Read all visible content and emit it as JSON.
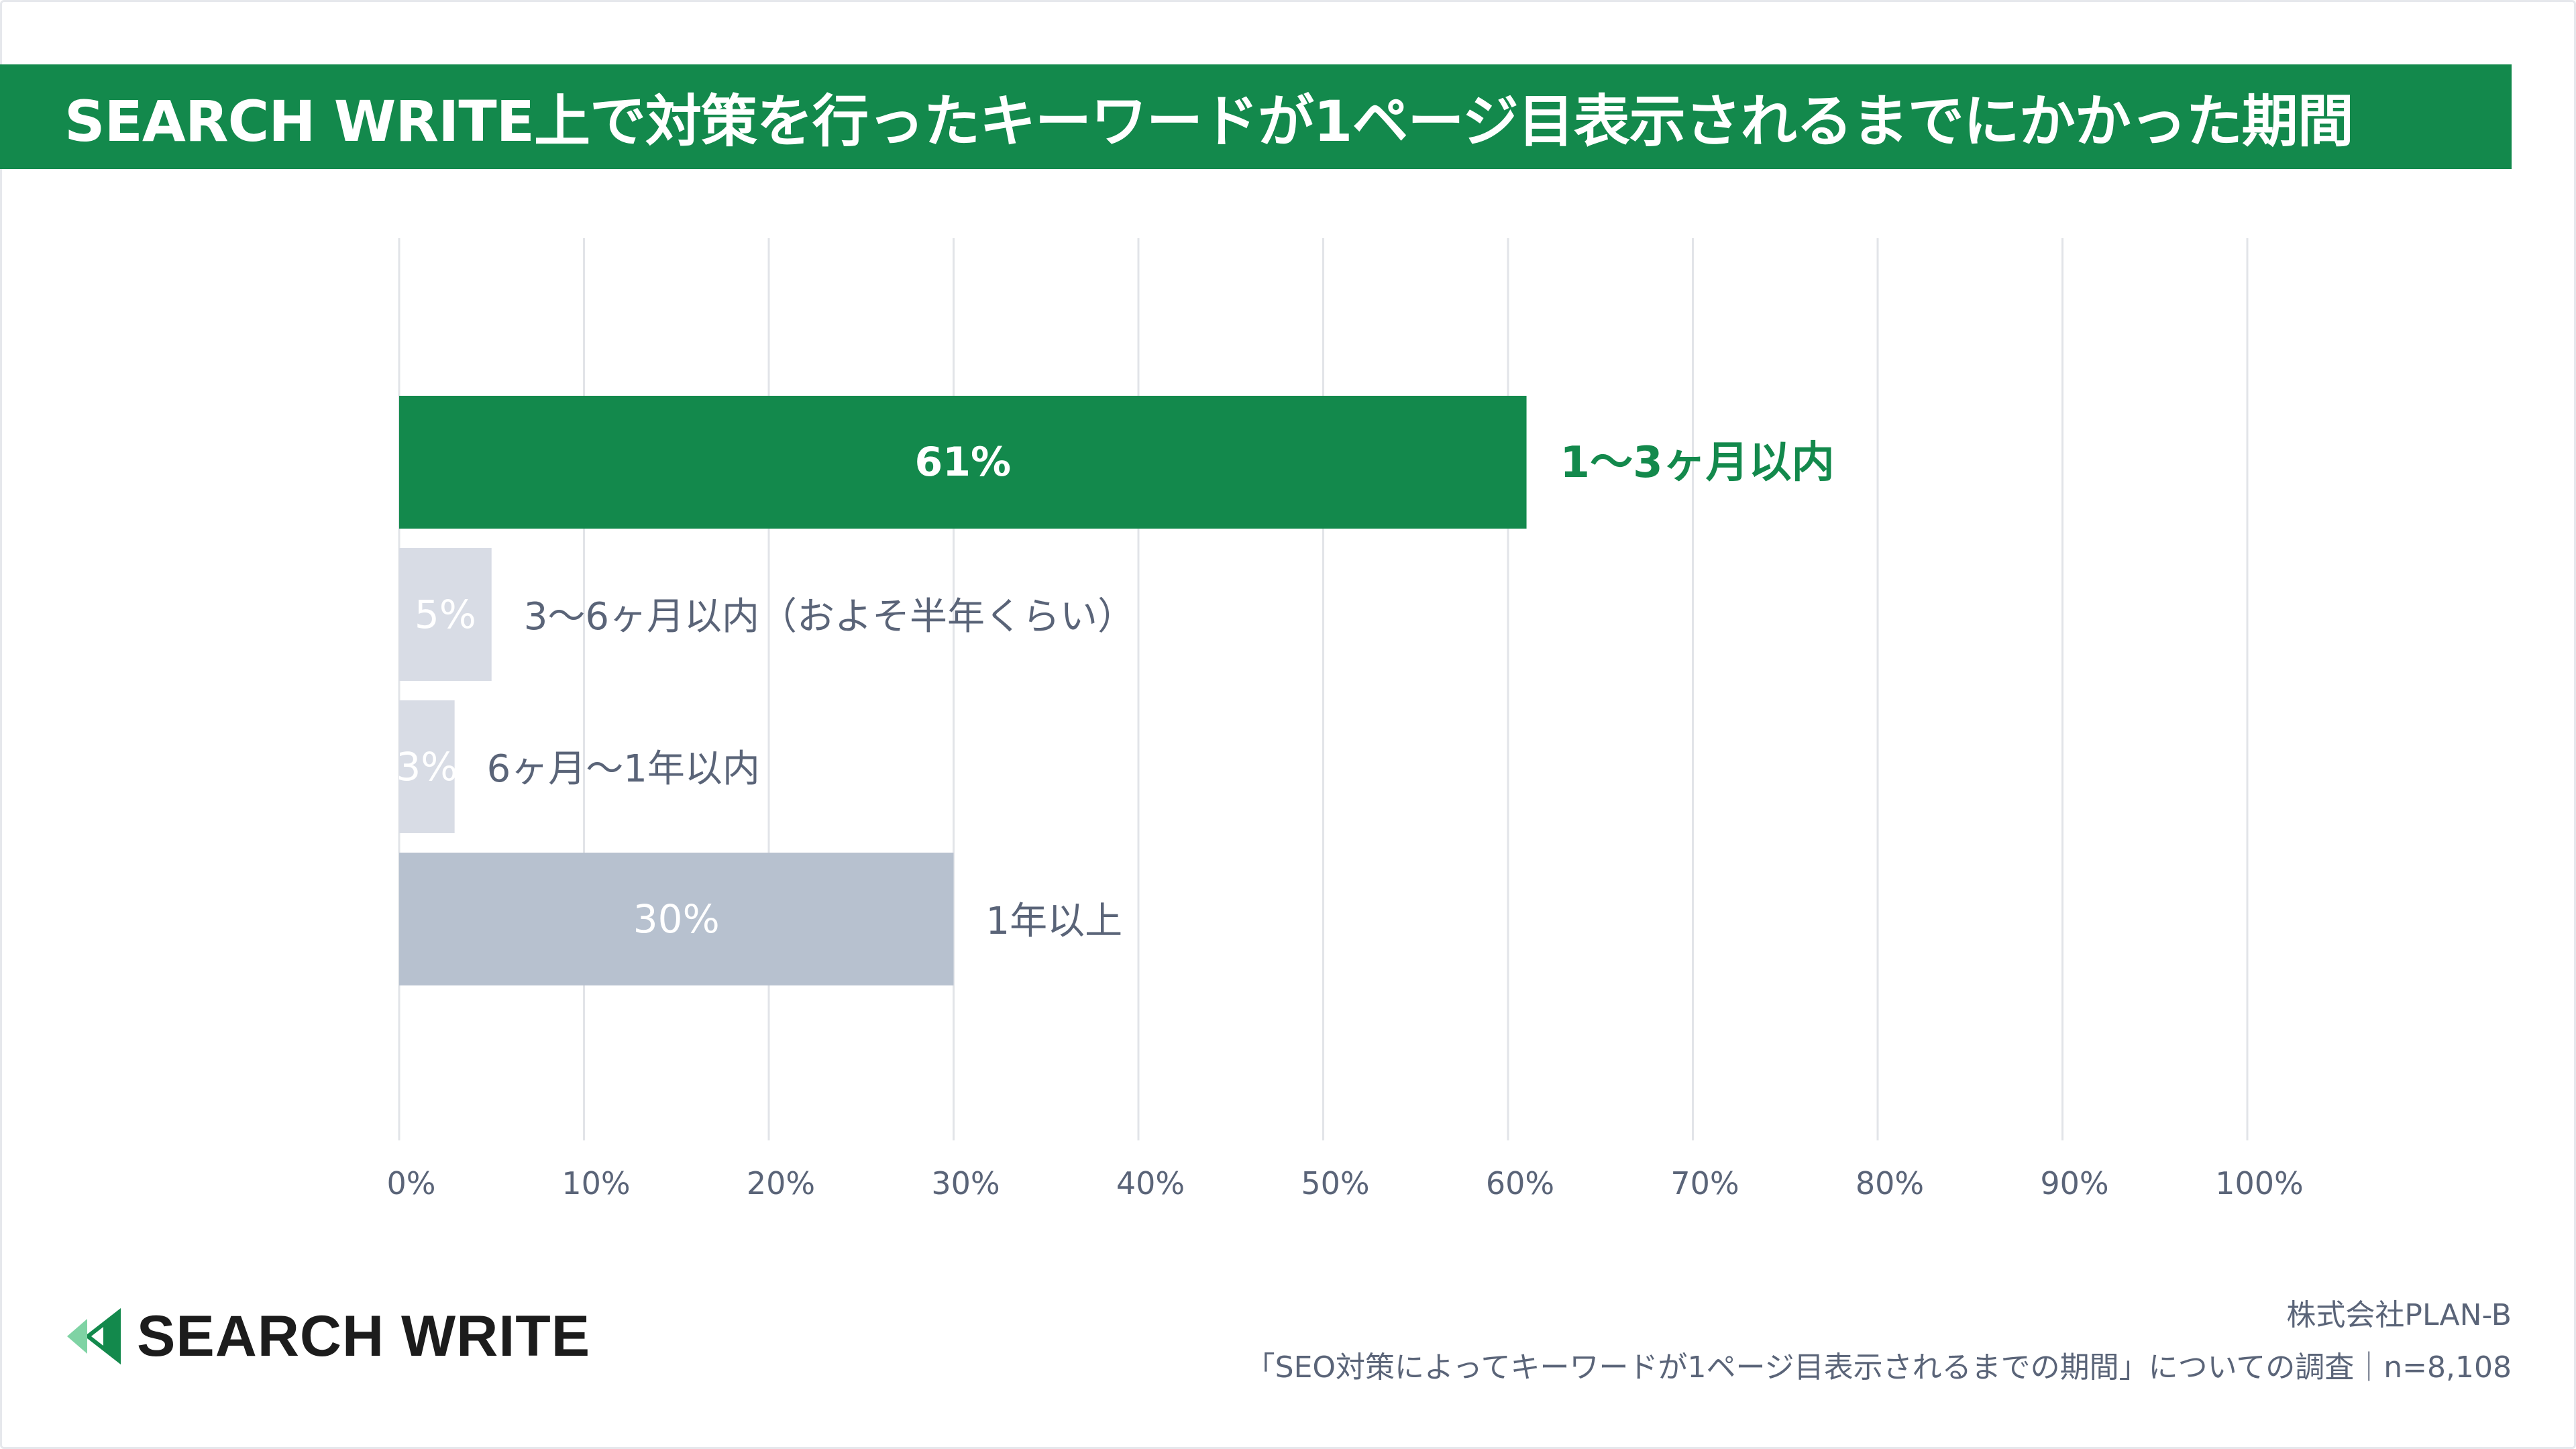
{
  "title": "SEARCH WRITE上で対策を行ったキーワードが1ページ目表示されるまでにかかった期間",
  "colors": {
    "brand_green": "#13894c",
    "bar_highlight": "#13894c",
    "bar_light": "#d8dce5",
    "bar_mid": "#b7c1cf",
    "label_gray": "#5a6478",
    "grid": "#e2e4e8"
  },
  "chart_data": {
    "type": "bar",
    "orientation": "horizontal",
    "categories": [
      "1〜3ヶ月以内",
      "3〜6ヶ月以内（およそ半年くらい）",
      "6ヶ月〜1年以内",
      "1年以上"
    ],
    "values": [
      61,
      5,
      3,
      30
    ],
    "value_labels": [
      "61%",
      "5%",
      "3%",
      "30%"
    ],
    "bar_colors": [
      "#13894c",
      "#d8dce5",
      "#d8dce5",
      "#b7c1cf"
    ],
    "xlim": [
      0,
      100
    ],
    "x_ticks": [
      "0%",
      "10%",
      "20%",
      "30%",
      "40%",
      "50%",
      "60%",
      "70%",
      "80%",
      "90%",
      "100%"
    ],
    "grid": true,
    "legend": "none"
  },
  "footer": {
    "logo_icon": "search-write-arrow-icon",
    "brand_name": "SEARCH WRITE",
    "company": "株式会社PLAN-B",
    "survey": "「SEO対策によってキーワードが1ページ目表示されるまでの期間」についての調査｜n=8,108"
  }
}
